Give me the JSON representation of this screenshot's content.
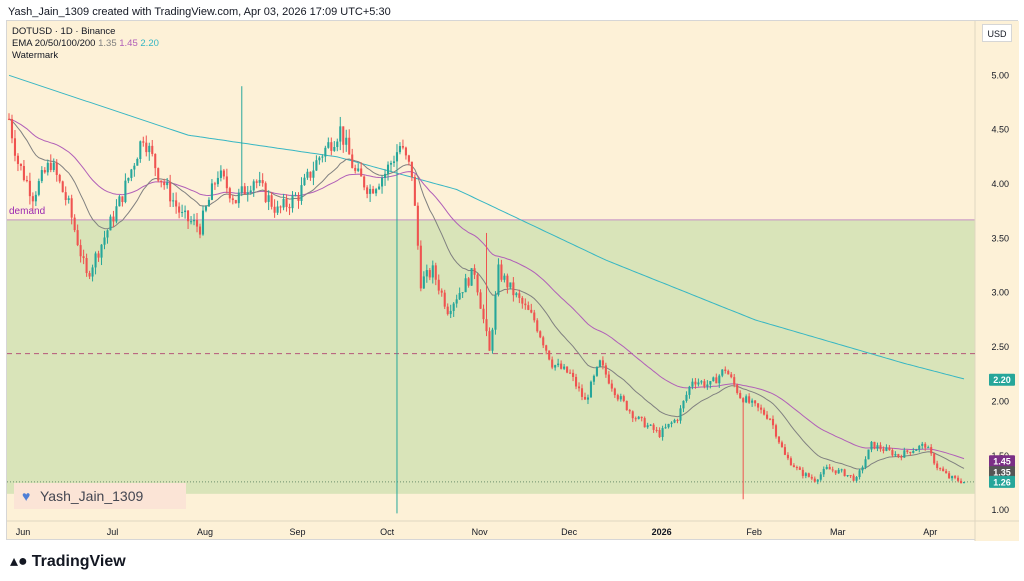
{
  "header": {
    "attribution": "Yash_Jain_1309 created with TradingView.com, Apr 03, 2026 17:09 UTC+5:30"
  },
  "legend": {
    "symbol_line": "DOTUSD · 1D · Binance",
    "ema_label": "EMA 20/50/100/200",
    "ema_values": [
      "1.35",
      "1.45",
      "2.20"
    ],
    "watermark_label": "Watermark"
  },
  "currency_button": "USD",
  "watermark_text": "Yash_Jain_1309",
  "footer_brand": "TradingView",
  "colors": {
    "up": "#26a69a",
    "down": "#ef5350",
    "demand_zone": "#d7e3b7",
    "ema_fast": "#808080",
    "ema_slow": "#b15fb8",
    "ema_200": "#36b6c3",
    "level_line": "#b5567a"
  },
  "chart_data": {
    "type": "candlestick",
    "title": "DOTUSD · 1D · Binance",
    "ylim": [
      0.9,
      5.5
    ],
    "y_ticks": [
      "5.00",
      "4.50",
      "4.00",
      "3.50",
      "3.00",
      "2.50",
      "2.00",
      "1.50",
      "1.00"
    ],
    "x_labels": [
      "Jun",
      "Jul",
      "Aug",
      "Sep",
      "Oct",
      "Nov",
      "Dec",
      "2026",
      "Feb",
      "Mar",
      "Apr"
    ],
    "x_label_days": [
      0,
      30,
      61,
      92,
      122,
      153,
      183,
      214,
      245,
      273,
      304
    ],
    "zones": [
      {
        "label": "demand",
        "from": 1.15,
        "to": 3.67
      }
    ],
    "levels": [
      {
        "value": 2.44,
        "style": "dashed"
      },
      {
        "value": 1.26,
        "style": "dotted"
      }
    ],
    "price_tags": [
      {
        "value": "2.20",
        "price": 2.2,
        "color": "#26a69a"
      },
      {
        "value": "1.45",
        "price": 1.45,
        "color": "#7b2f86"
      },
      {
        "value": "1.35",
        "price": 1.35,
        "color": "#555555"
      },
      {
        "value": "1.26",
        "price": 1.26,
        "color": "#26a69a"
      }
    ],
    "price_anchors": [
      [
        0,
        4.6
      ],
      [
        3,
        4.2
      ],
      [
        8,
        3.9
      ],
      [
        14,
        4.2
      ],
      [
        20,
        3.8
      ],
      [
        26,
        3.15
      ],
      [
        31,
        3.45
      ],
      [
        38,
        3.9
      ],
      [
        45,
        4.45
      ],
      [
        50,
        4.1
      ],
      [
        58,
        3.7
      ],
      [
        64,
        3.6
      ],
      [
        70,
        4.1
      ],
      [
        76,
        3.85
      ],
      [
        82,
        4.05
      ],
      [
        90,
        3.75
      ],
      [
        97,
        3.9
      ],
      [
        104,
        4.25
      ],
      [
        111,
        4.5
      ],
      [
        116,
        4.1
      ],
      [
        121,
        3.95
      ],
      [
        126,
        4.1
      ],
      [
        131,
        4.35
      ],
      [
        135,
        4.1
      ],
      [
        138,
        3.1
      ],
      [
        142,
        3.2
      ],
      [
        147,
        2.85
      ],
      [
        152,
        3.05
      ],
      [
        156,
        3.2
      ],
      [
        161,
        2.45
      ],
      [
        164,
        3.2
      ],
      [
        169,
        3.0
      ],
      [
        176,
        2.75
      ],
      [
        182,
        2.35
      ],
      [
        188,
        2.25
      ],
      [
        193,
        2.0
      ],
      [
        198,
        2.35
      ],
      [
        204,
        2.05
      ],
      [
        210,
        1.85
      ],
      [
        218,
        1.7
      ],
      [
        224,
        1.85
      ],
      [
        229,
        2.2
      ],
      [
        235,
        2.15
      ],
      [
        240,
        2.3
      ],
      [
        245,
        2.05
      ],
      [
        250,
        1.95
      ],
      [
        255,
        1.85
      ],
      [
        260,
        1.5
      ],
      [
        265,
        1.35
      ],
      [
        270,
        1.28
      ],
      [
        274,
        1.38
      ],
      [
        279,
        1.35
      ],
      [
        284,
        1.28
      ],
      [
        289,
        1.6
      ],
      [
        294,
        1.55
      ],
      [
        298,
        1.5
      ],
      [
        302,
        1.55
      ],
      [
        307,
        1.6
      ],
      [
        311,
        1.4
      ],
      [
        315,
        1.3
      ],
      [
        320,
        1.26
      ]
    ],
    "ema_series": [
      {
        "name": "EMA 20",
        "value": "1.35",
        "color": "#808080"
      },
      {
        "name": "EMA 50",
        "value": "1.45",
        "color": "#b15fb8"
      },
      {
        "name": "EMA 200",
        "value": "2.20",
        "color": "#36b6c3"
      }
    ],
    "ema200_anchors": [
      [
        0,
        5.0
      ],
      [
        60,
        4.45
      ],
      [
        110,
        4.25
      ],
      [
        150,
        3.95
      ],
      [
        200,
        3.3
      ],
      [
        250,
        2.75
      ],
      [
        300,
        2.35
      ],
      [
        321,
        2.2
      ]
    ]
  }
}
